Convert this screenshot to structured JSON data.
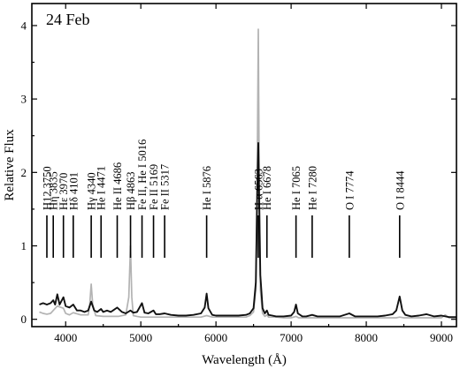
{
  "chart_data": {
    "type": "line",
    "title": "24 Feb",
    "xlabel": "Wavelength (Å)",
    "ylabel": "Relative Flux",
    "xlim": [
      3550,
      9200
    ],
    "ylim": [
      -0.1,
      4.3
    ],
    "xticks": [
      4000,
      5000,
      6000,
      7000,
      8000,
      9000
    ],
    "yticks": [
      0,
      1,
      2,
      3,
      4
    ],
    "grid": false,
    "series": [
      {
        "color": "#111111",
        "x": [
          3650,
          3700,
          3750,
          3800,
          3835,
          3860,
          3889,
          3920,
          3970,
          4000,
          4050,
          4101,
          4150,
          4200,
          4250,
          4300,
          4340,
          4380,
          4420,
          4471,
          4500,
          4550,
          4600,
          4686,
          4750,
          4800,
          4863,
          4900,
          4950,
          5016,
          5050,
          5100,
          5169,
          5200,
          5250,
          5317,
          5400,
          5500,
          5600,
          5700,
          5800,
          5850,
          5876,
          5900,
          5950,
          6000,
          6100,
          6200,
          6300,
          6400,
          6450,
          6500,
          6530,
          6550,
          6563,
          6575,
          6590,
          6620,
          6650,
          6678,
          6700,
          6750,
          6800,
          6900,
          7000,
          7040,
          7065,
          7090,
          7150,
          7200,
          7280,
          7350,
          7450,
          7550,
          7650,
          7774,
          7850,
          7950,
          8050,
          8150,
          8250,
          8350,
          8400,
          8444,
          8480,
          8520,
          8600,
          8700,
          8800,
          8900,
          9000,
          9100,
          9200
        ],
        "y": [
          0.2,
          0.22,
          0.2,
          0.22,
          0.26,
          0.2,
          0.34,
          0.2,
          0.3,
          0.18,
          0.16,
          0.2,
          0.12,
          0.12,
          0.1,
          0.12,
          0.24,
          0.12,
          0.1,
          0.14,
          0.1,
          0.12,
          0.1,
          0.16,
          0.1,
          0.08,
          0.12,
          0.09,
          0.1,
          0.22,
          0.09,
          0.08,
          0.12,
          0.07,
          0.07,
          0.08,
          0.06,
          0.05,
          0.05,
          0.06,
          0.08,
          0.16,
          0.35,
          0.15,
          0.06,
          0.05,
          0.05,
          0.05,
          0.05,
          0.06,
          0.08,
          0.15,
          0.5,
          1.8,
          2.4,
          1.6,
          0.6,
          0.15,
          0.08,
          0.12,
          0.06,
          0.05,
          0.04,
          0.04,
          0.05,
          0.1,
          0.2,
          0.08,
          0.04,
          0.04,
          0.06,
          0.04,
          0.04,
          0.04,
          0.04,
          0.08,
          0.04,
          0.04,
          0.04,
          0.04,
          0.05,
          0.07,
          0.12,
          0.31,
          0.12,
          0.06,
          0.04,
          0.05,
          0.07,
          0.04,
          0.05,
          0.03,
          0.03
        ]
      },
      {
        "color": "#b3b3b3",
        "x": [
          3650,
          3700,
          3750,
          3800,
          3835,
          3889,
          3970,
          4000,
          4050,
          4101,
          4200,
          4300,
          4320,
          4340,
          4360,
          4400,
          4500,
          4600,
          4700,
          4800,
          4840,
          4863,
          4880,
          4900,
          4950,
          5000,
          5100,
          5200,
          5300,
          5400,
          5500,
          5600,
          5700,
          5800,
          5876,
          5950,
          6000,
          6100,
          6200,
          6300,
          6400,
          6450,
          6500,
          6530,
          6550,
          6563,
          6575,
          6590,
          6620,
          6650,
          6678,
          6700,
          6800,
          6900,
          7000,
          7065,
          7100,
          7200,
          7300,
          7400,
          7500,
          7600,
          7700,
          7800,
          7900,
          8000,
          8100,
          8200,
          8300,
          8400,
          8444,
          8500,
          8600,
          8700,
          8800,
          8900,
          9000,
          9050,
          9100,
          9200
        ],
        "y": [
          0.1,
          0.08,
          0.07,
          0.08,
          0.12,
          0.18,
          0.15,
          0.08,
          0.06,
          0.09,
          0.06,
          0.06,
          0.2,
          0.48,
          0.2,
          0.05,
          0.04,
          0.04,
          0.04,
          0.06,
          0.3,
          1.0,
          0.3,
          0.05,
          0.04,
          0.03,
          0.03,
          0.03,
          0.03,
          0.03,
          0.03,
          0.03,
          0.03,
          0.03,
          0.05,
          0.03,
          0.03,
          0.03,
          0.03,
          0.03,
          0.03,
          0.05,
          0.1,
          0.4,
          2.2,
          3.95,
          2.0,
          0.4,
          0.08,
          0.04,
          0.06,
          0.03,
          0.03,
          0.02,
          0.02,
          0.04,
          0.02,
          0.02,
          0.02,
          0.02,
          0.02,
          0.02,
          0.02,
          0.02,
          0.02,
          0.02,
          0.02,
          0.02,
          0.02,
          0.02,
          0.03,
          0.02,
          0.02,
          0.02,
          0.02,
          0.02,
          0.02,
          0.06,
          0.02,
          0.02
        ]
      }
    ],
    "line_ids": [
      {
        "label": "H12 3750",
        "x": 3750
      },
      {
        "label": "Hη 3835",
        "x": 3835
      },
      {
        "label": "Hε 3970",
        "x": 3970
      },
      {
        "label": "Hδ 4101",
        "x": 4101
      },
      {
        "label": "Hγ 4340",
        "x": 4340
      },
      {
        "label": "He I 4471",
        "x": 4471
      },
      {
        "label": "He II 4686",
        "x": 4686
      },
      {
        "label": "Hβ 4863",
        "x": 4863
      },
      {
        "label": "Fe II, He I  5016",
        "x": 5016
      },
      {
        "label": "Fe II 5169",
        "x": 5169
      },
      {
        "label": "Fe II 5317",
        "x": 5317
      },
      {
        "label": "He I 5876",
        "x": 5876
      },
      {
        "label": "H α 6563",
        "x": 6563
      },
      {
        "label": "He I 6678",
        "x": 6678
      },
      {
        "label": "He I 7065",
        "x": 7065
      },
      {
        "label": "He I 7280",
        "x": 7280
      },
      {
        "label": "O I 7774",
        "x": 7774
      },
      {
        "label": "O I 8444",
        "x": 8444
      }
    ]
  }
}
